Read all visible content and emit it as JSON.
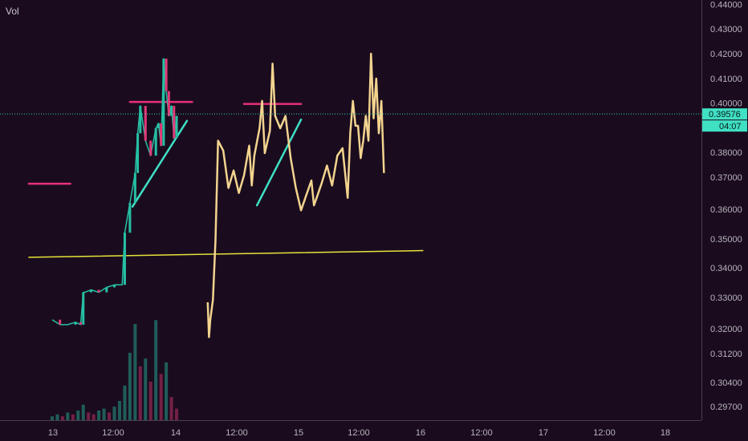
{
  "indicator_label": "Vol",
  "colors": {
    "background": "#1a0c1e",
    "candle_up": "#26c0a4",
    "candle_down": "#e23a78",
    "projection": "#f3d48f",
    "resistance": "#e8307a",
    "trendline": "#3fe0c4",
    "support": "#e6e23a",
    "last_price_line": "#2fd0b8",
    "badge": "#3fe0c4"
  },
  "price_axis": {
    "ticks": [
      "0.44000",
      "0.43000",
      "0.42000",
      "0.41000",
      "0.40000",
      "0.39000",
      "0.38000",
      "0.37000",
      "0.36000",
      "0.35000",
      "0.34000",
      "0.33000",
      "0.32000",
      "0.31200",
      "0.30400",
      "0.29700"
    ],
    "last_price_badge": "0.39576",
    "countdown_badge": "04:07"
  },
  "time_axis": {
    "ticks": [
      "13",
      "12:00",
      "14",
      "12:00",
      "15",
      "12:00",
      "16",
      "12:00",
      "17",
      "12:00",
      "18"
    ]
  },
  "chart_data": {
    "type": "line",
    "title": "",
    "xlabel": "",
    "ylabel": "",
    "x_unit": "hours from 13 00:00",
    "ylim": [
      0.294,
      0.446
    ],
    "last_price": 0.39576,
    "series": [
      {
        "role": "actual",
        "x": [
          0,
          3,
          6,
          9,
          11,
          12,
          12.5,
          15,
          18,
          21,
          24,
          27,
          28,
          30,
          32,
          33,
          34,
          36,
          38,
          40,
          41,
          42,
          43,
          44,
          45,
          46,
          47,
          48
        ],
        "y": [
          0.313,
          0.311,
          0.311,
          0.312,
          0.311,
          0.324,
          0.324,
          0.325,
          0.324,
          0.326,
          0.327,
          0.327,
          0.348,
          0.36,
          0.372,
          0.388,
          0.399,
          0.385,
          0.379,
          0.39,
          0.392,
          0.383,
          0.418,
          0.405,
          0.395,
          0.399,
          0.386,
          0.395
        ]
      },
      {
        "role": "projection",
        "x": [
          60,
          60.5,
          61,
          62,
          63,
          64,
          66,
          68,
          70,
          72,
          74,
          76,
          77,
          78,
          80,
          81,
          82,
          84,
          85,
          86,
          88,
          90,
          92,
          94,
          96,
          98,
          100,
          101,
          102,
          104,
          106,
          108,
          110,
          112,
          114,
          115,
          116,
          117,
          118,
          119,
          120,
          121,
          122,
          123,
          124,
          125,
          126,
          127,
          128
        ],
        "y": [
          0.32,
          0.306,
          0.313,
          0.321,
          0.345,
          0.385,
          0.381,
          0.366,
          0.373,
          0.364,
          0.371,
          0.383,
          0.367,
          0.379,
          0.39,
          0.401,
          0.38,
          0.389,
          0.416,
          0.395,
          0.39,
          0.395,
          0.378,
          0.366,
          0.357,
          0.363,
          0.369,
          0.359,
          0.362,
          0.368,
          0.375,
          0.367,
          0.379,
          0.382,
          0.362,
          0.388,
          0.401,
          0.391,
          0.391,
          0.378,
          0.385,
          0.395,
          0.385,
          0.42,
          0.394,
          0.41,
          0.388,
          0.401,
          0.372
        ]
      }
    ],
    "volume": {
      "x": [
        0,
        2,
        4,
        6,
        8,
        10,
        12,
        14,
        16,
        18,
        20,
        22,
        24,
        26,
        28,
        30,
        32,
        34,
        36,
        38,
        40,
        42,
        44,
        46,
        48
      ],
      "values": [
        2,
        3,
        2,
        4,
        3,
        5,
        8,
        4,
        3,
        5,
        6,
        4,
        7,
        10,
        18,
        35,
        50,
        28,
        32,
        20,
        52,
        24,
        30,
        12,
        6
      ]
    },
    "annotations": [
      {
        "type": "resistance",
        "x": [
          30,
          54
        ],
        "y": [
          0.4006,
          0.4006
        ]
      },
      {
        "type": "resistance",
        "x": [
          74,
          96
        ],
        "y": [
          0.3998,
          0.3998
        ]
      },
      {
        "type": "resistance",
        "x": [
          -9,
          7
        ],
        "y": [
          0.3677,
          0.3677
        ]
      },
      {
        "type": "trendline",
        "x": [
          31,
          52
        ],
        "y": [
          0.3585,
          0.393
        ]
      },
      {
        "type": "trendline",
        "x": [
          79,
          96
        ],
        "y": [
          0.359,
          0.3935
        ]
      },
      {
        "type": "support",
        "x": [
          -9,
          143
        ],
        "y": [
          0.3381,
          0.3408
        ]
      }
    ]
  }
}
